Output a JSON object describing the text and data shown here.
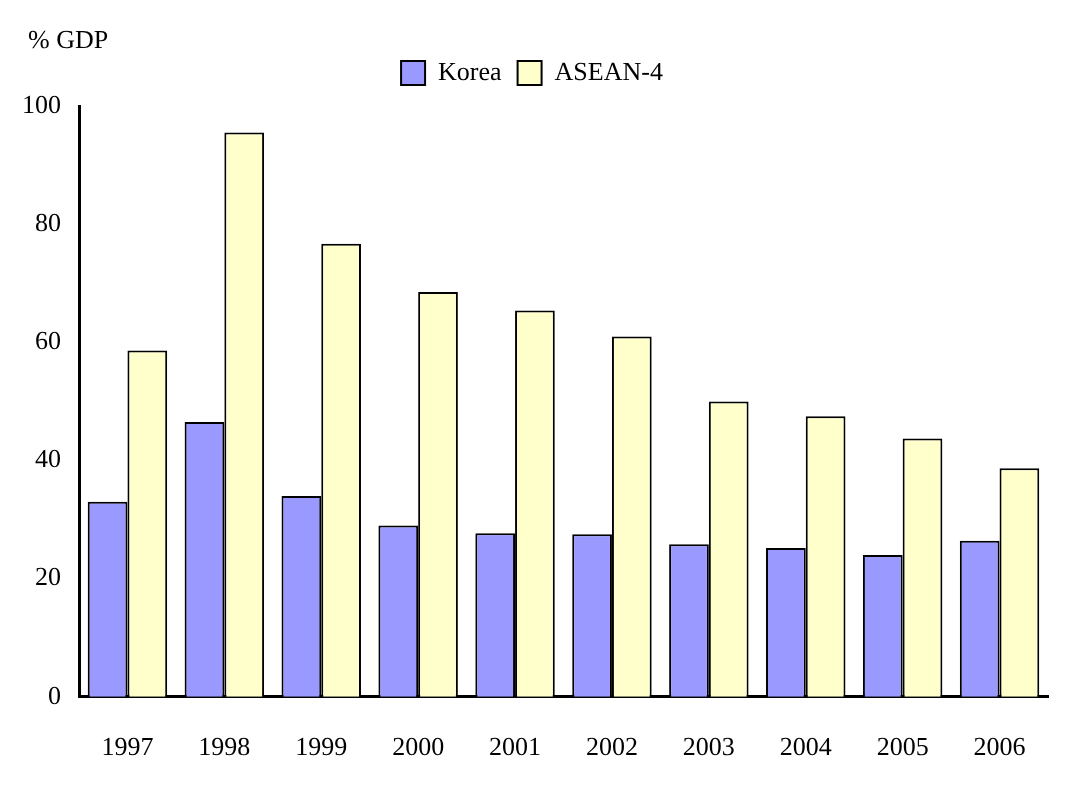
{
  "chart_data": {
    "type": "bar",
    "ylabel": "% GDP",
    "categories": [
      "1997",
      "1998",
      "1999",
      "2000",
      "2001",
      "2002",
      "2003",
      "2004",
      "2005",
      "2006"
    ],
    "series": [
      {
        "name": "Korea",
        "color": "#9999ff",
        "values": [
          33,
          46.5,
          34,
          29,
          27.7,
          27.5,
          25.8,
          25.2,
          24,
          26.4
        ]
      },
      {
        "name": "ASEAN-4",
        "color": "#ffffcc",
        "values": [
          58.6,
          95.5,
          76.7,
          68.5,
          65.4,
          61,
          50,
          47.5,
          43.7,
          38.7
        ]
      }
    ],
    "ylim": [
      0,
      100
    ],
    "yticks": [
      0,
      20,
      40,
      60,
      80,
      100
    ],
    "grid": false,
    "legend": "top"
  }
}
